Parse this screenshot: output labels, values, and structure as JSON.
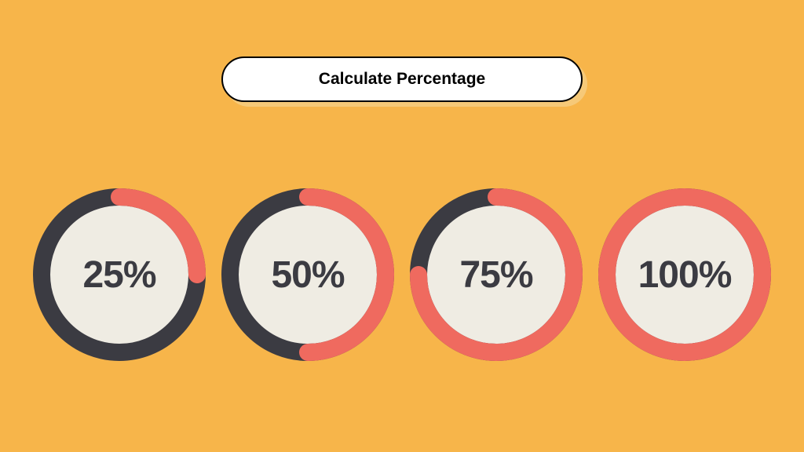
{
  "background_color": "#f7b54a",
  "title": {
    "text": "Calculate Percentage",
    "pill_bg": "#ffffff",
    "pill_border": "#000000",
    "shadow_color": "#f6c978",
    "font_size": 21,
    "text_color": "#000000"
  },
  "rings": {
    "diameter": 220,
    "stroke_width": 22,
    "track_color": "#3b3b42",
    "progress_color": "#ef6a5f",
    "inner_fill": "#efece3",
    "label_color": "#3b3b42",
    "label_font_size": 48,
    "start_angle": -90,
    "items": [
      {
        "percent": 25,
        "label": "25%"
      },
      {
        "percent": 50,
        "label": "50%"
      },
      {
        "percent": 75,
        "label": "75%"
      },
      {
        "percent": 100,
        "label": "100%"
      }
    ]
  }
}
